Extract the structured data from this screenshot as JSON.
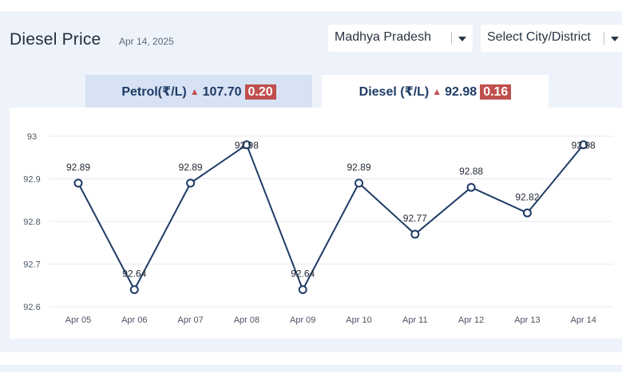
{
  "header": {
    "title": "Diesel Price",
    "date": "Apr 14, 2025"
  },
  "filters": {
    "state": "Madhya Pradesh",
    "city": "Select City/District"
  },
  "tabs": [
    {
      "fuel": "Petrol(₹/L)",
      "price": "107.70",
      "change": "0.20",
      "active": false
    },
    {
      "fuel": "Diesel (₹/L)",
      "price": "92.98",
      "change": "0.16",
      "active": true
    }
  ],
  "colors": {
    "line": "#1f3b66",
    "up_arrow": "#c0504d",
    "change_badge": "#c0504d",
    "grid": "#e6e9ef"
  },
  "chart_data": {
    "type": "line",
    "x": [
      "Apr 05",
      "Apr 06",
      "Apr 07",
      "Apr 08",
      "Apr 09",
      "Apr 10",
      "Apr 11",
      "Apr 12",
      "Apr 13",
      "Apr 14"
    ],
    "series": [
      {
        "values": [
          92.89,
          92.64,
          92.89,
          92.98,
          92.64,
          92.89,
          92.77,
          92.88,
          92.82,
          92.98
        ]
      }
    ],
    "data_labels": [
      "92.89",
      "92.64",
      "92.89",
      "92.98",
      "92.64",
      "92.89",
      "92.77",
      "92.88",
      "92.82",
      "92.98"
    ],
    "yticks": [
      "93",
      "92.9",
      "92.8",
      "92.7",
      "92.6"
    ],
    "ylim": [
      92.6,
      93
    ],
    "grid": true,
    "legend": "none",
    "title": "",
    "xlabel": "",
    "ylabel": ""
  }
}
